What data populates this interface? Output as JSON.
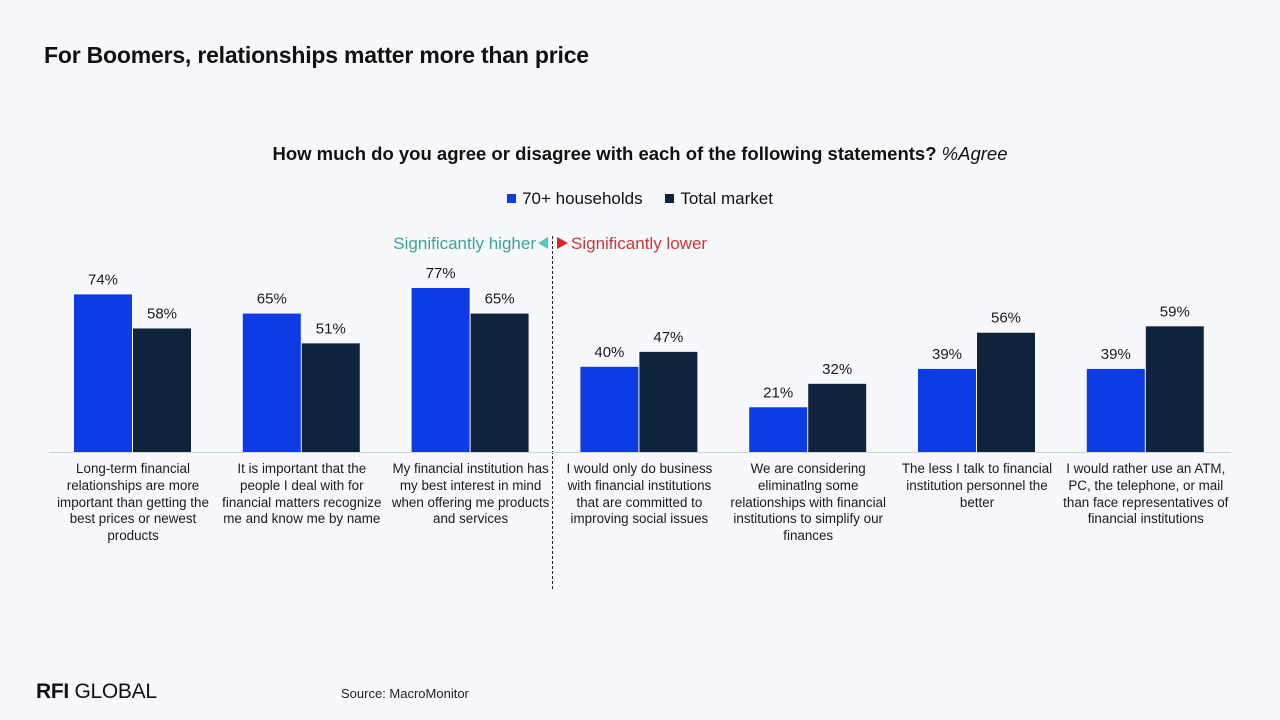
{
  "slide": {
    "title": "For Boomers, relationships matter more than price",
    "question": "How much do you agree or disagree with each of the following statements?",
    "question_suffix": "%Agree",
    "sig_higher": "Significantly higher",
    "sig_lower": "Significantly lower",
    "source": "Source: MacroMonitor",
    "logo_bold": "RFI",
    "logo_rest": " GLOBAL"
  },
  "colors": {
    "series_70plus": "#0d3ce6",
    "series_total": "#0f233d",
    "sig_higher": "#58c9c0",
    "sig_lower": "#e0232b"
  },
  "chart_data": {
    "type": "bar",
    "title": "How much do you agree or disagree with each of the following statements? %Agree",
    "categories": [
      "Long-term financial relationships are more important than getting the best prices or newest products",
      "It is important that the people I deal with for financial matters recognize me and know me by name",
      "My financial institution has my best interest in mind when offering me products and services",
      "I would only do business with financial institutions that are committed to improving social issues",
      "We are considering eliminatlng some relationships with financial institutions to simplify our finances",
      "The less I talk to financial institution personnel the better",
      "I would rather use an ATM, PC, the telephone, or mail than face representatives of financial institutions"
    ],
    "series": [
      {
        "name": "70+ households",
        "values": [
          74,
          65,
          77,
          40,
          21,
          39,
          39
        ]
      },
      {
        "name": "Total market",
        "values": [
          58,
          51,
          65,
          47,
          32,
          56,
          59
        ]
      }
    ],
    "value_suffix": "%",
    "ylim": [
      0,
      100
    ],
    "legend_position": "top-center",
    "grid": false
  }
}
